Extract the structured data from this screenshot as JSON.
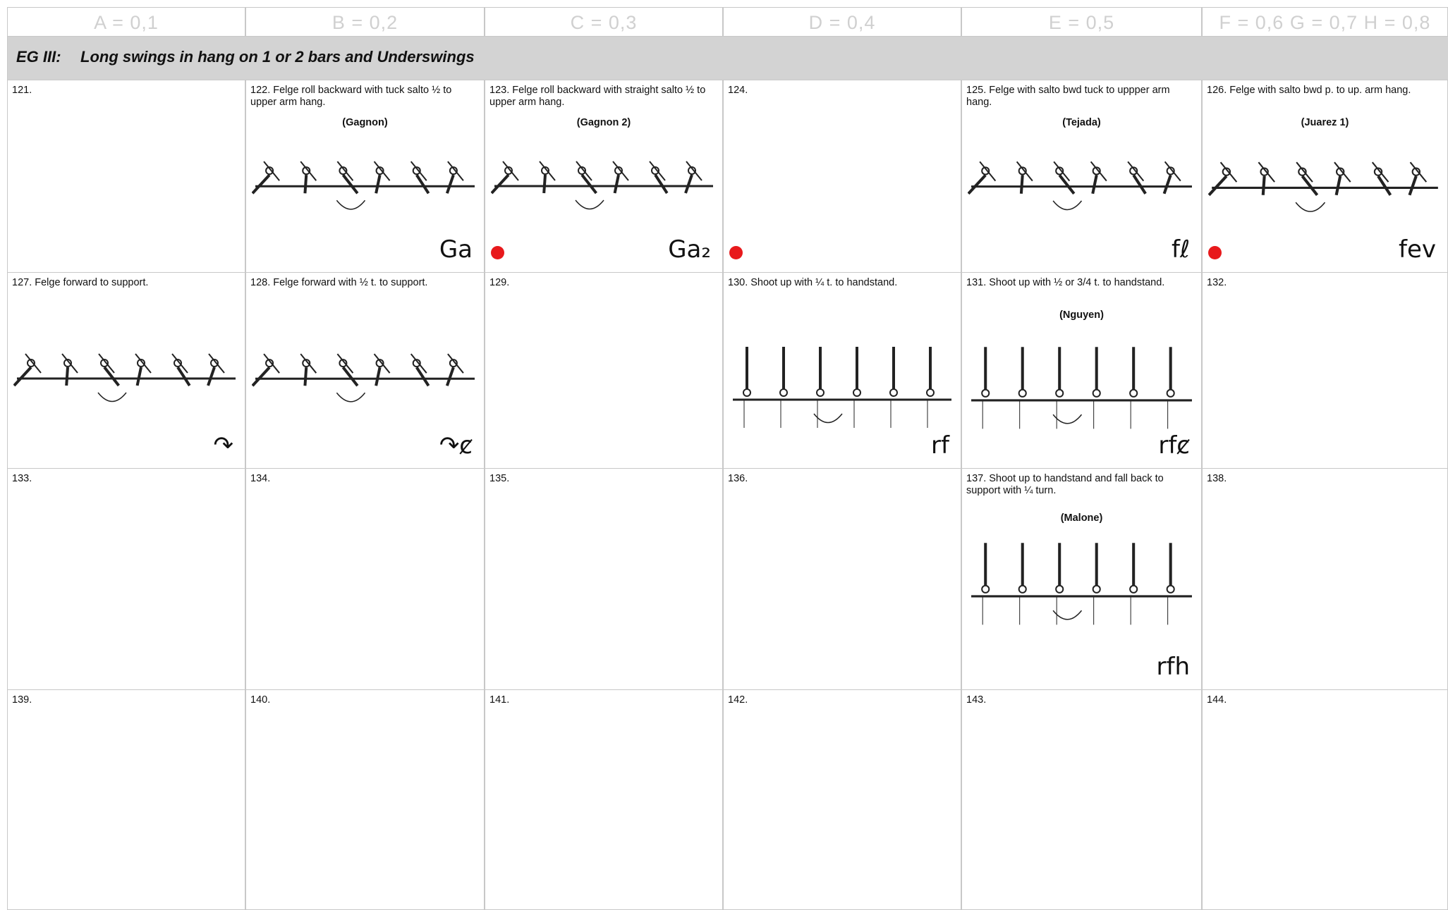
{
  "header": {
    "columns": [
      "A = 0,1",
      "B = 0,2",
      "C = 0,3",
      "D = 0,4",
      "E = 0,5",
      "F = 0,6 G = 0,7 H = 0,8"
    ],
    "section": "EG III:",
    "section_title": "Long swings in hang on 1 or 2 bars and Underswings"
  },
  "table": {
    "rows": [
      [
        {
          "text": "121."
        },
        {
          "text": "122. Felge roll backward with tuck salto ½ to upper arm hang.",
          "name": "(Gagnon)",
          "symbol": "Ga"
        },
        {
          "text": "123.  Felge roll backward with straight salto ½ to upper  arm hang.",
          "name": "(Gagnon 2)",
          "symbol": "Ga₂"
        },
        {
          "text": "124."
        },
        {
          "text": "125. Felge with salto bwd tuck to uppper arm hang.",
          "name": "(Tejada)",
          "symbol": "fℓ"
        },
        {
          "text": "126. Felge with salto bwd p. to up. arm hang.",
          "name": "(Juarez 1)",
          "symbol": "fev"
        }
      ],
      [
        {
          "text": "127. Felge forward to support.",
          "symbol": "↷"
        },
        {
          "text": "128. Felge forward with ½ t. to support.",
          "symbol": "↷ȼ"
        },
        {
          "text": "129."
        },
        {
          "text": "130. Shoot up with ¼ t. to handstand.",
          "symbol": "rf"
        },
        {
          "text": "131. Shoot up with ½ or 3/4 t. to handstand.",
          "name": "(Nguyen)",
          "symbol": "rfȼ"
        },
        {
          "text": "132."
        }
      ],
      [
        {
          "text": "133."
        },
        {
          "text": "134."
        },
        {
          "text": "135."
        },
        {
          "text": "136."
        },
        {
          "text": "137. Shoot up to handstand and fall back to support with ¼ turn.",
          "name": "(Malone)",
          "symbol": "rfh"
        },
        {
          "text": "138."
        }
      ],
      [
        {
          "text": "139."
        },
        {
          "text": "140."
        },
        {
          "text": "141."
        },
        {
          "text": "142."
        },
        {
          "text": "143."
        },
        {
          "text": "144."
        }
      ]
    ]
  }
}
